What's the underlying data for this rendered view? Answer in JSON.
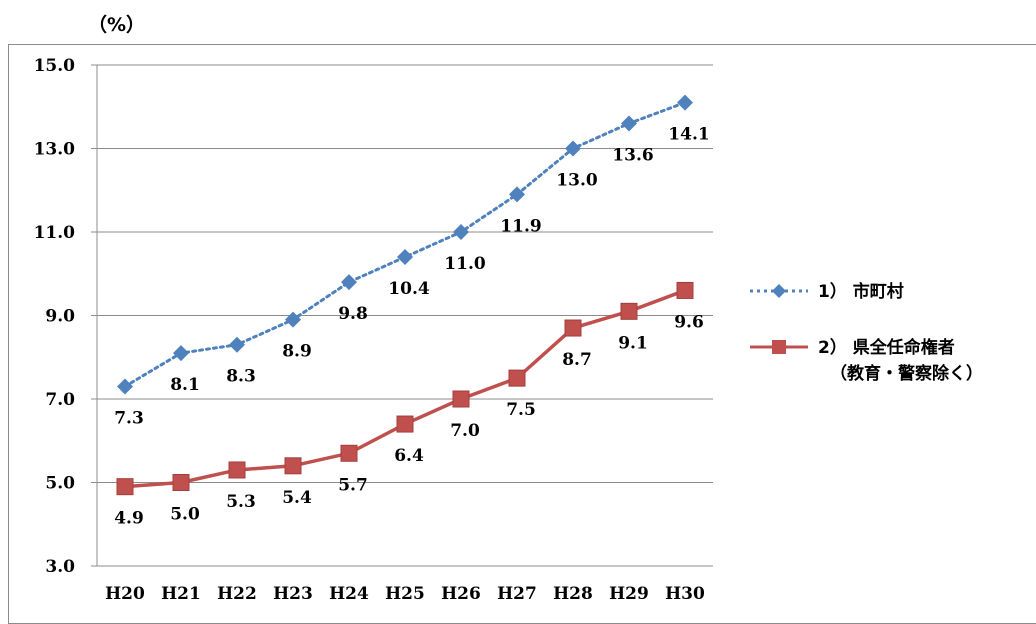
{
  "unit_label": "（%）",
  "chart_data": {
    "type": "line",
    "categories": [
      "H20",
      "H21",
      "H22",
      "H23",
      "H24",
      "H25",
      "H26",
      "H27",
      "H28",
      "H29",
      "H30"
    ],
    "ylim": [
      3.0,
      15.0
    ],
    "yticks": [
      "3.0",
      "5.0",
      "7.0",
      "9.0",
      "11.0",
      "13.0",
      "15.0"
    ],
    "ytick_values": [
      3,
      5,
      7,
      9,
      11,
      13,
      15
    ],
    "grid": true,
    "legend_position": "right",
    "series": [
      {
        "name": "1） 市町村",
        "color": "#4f81bd",
        "marker": "diamond",
        "line_style": "dotted",
        "values": [
          7.3,
          8.1,
          8.3,
          8.9,
          9.8,
          10.4,
          11.0,
          11.9,
          13.0,
          13.6,
          14.1
        ],
        "labels": [
          "7.3",
          "8.1",
          "8.3",
          "8.9",
          "9.8",
          "10.4",
          "11.0",
          "11.9",
          "13.0",
          "13.6",
          "14.1"
        ]
      },
      {
        "name": "2） 県全任命権者",
        "name_line2": "（教育・警察除く）",
        "color": "#c0504d",
        "marker": "square",
        "line_style": "solid",
        "values": [
          4.9,
          5.0,
          5.3,
          5.4,
          5.7,
          6.4,
          7.0,
          7.5,
          8.7,
          9.1,
          9.6
        ],
        "labels": [
          "4.9",
          "5.0",
          "5.3",
          "5.4",
          "5.7",
          "6.4",
          "7.0",
          "7.5",
          "8.7",
          "9.1",
          "9.6"
        ]
      }
    ]
  }
}
